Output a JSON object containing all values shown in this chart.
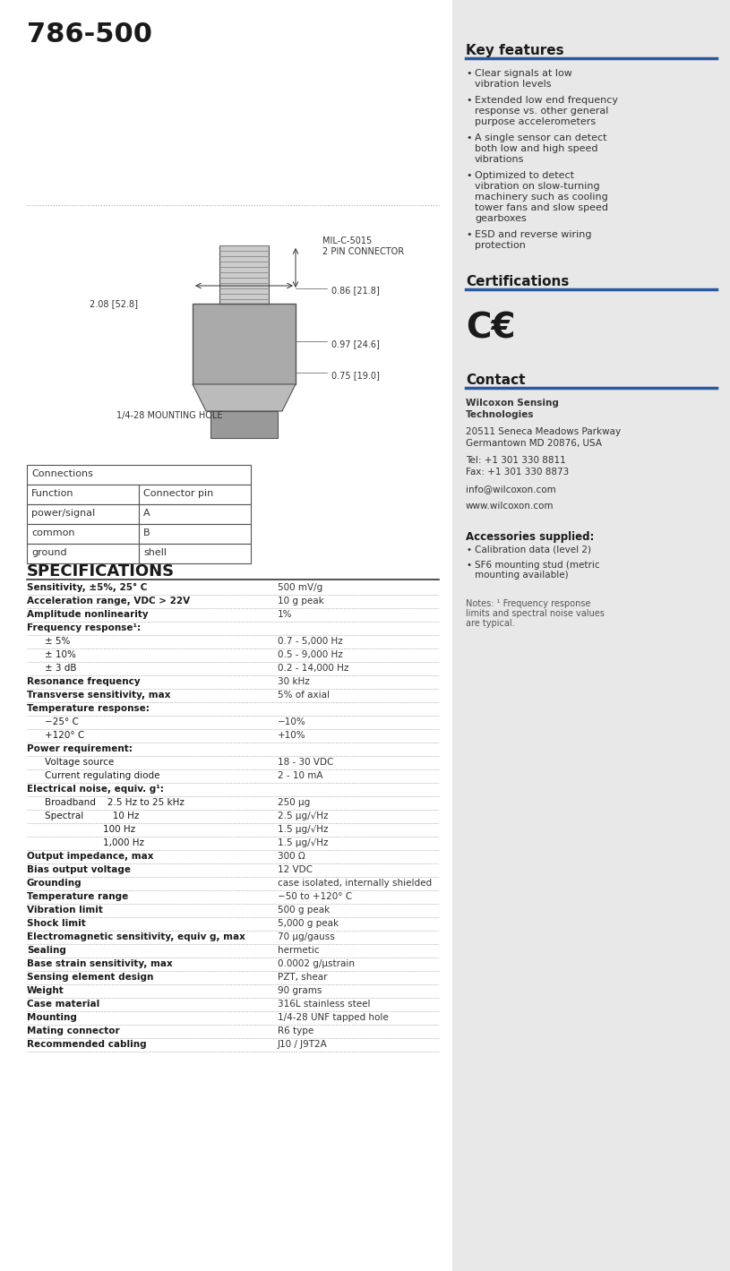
{
  "title": "786-500",
  "bg_color": "#ffffff",
  "sidebar_bg": "#e8e8e8",
  "key_features_title": "Key features",
  "key_features": [
    "Clear signals at low vibration levels",
    "Extended low end frequency response vs. other general purpose accelerometers",
    "A single sensor can detect both low and high speed vibrations",
    "Optimized to detect vibration on slow-turning machinery such as cooling tower fans and slow speed gearboxes",
    "ESD and reverse wiring protection"
  ],
  "certifications_title": "Certifications",
  "certifications_symbol": "CE",
  "contact_title": "Contact",
  "contact_lines": [
    "Wilcoxon Sensing",
    "Technologies",
    "",
    "20511 Seneca Meadows Parkway",
    "Germantown MD 20876, USA",
    "",
    "Tel: +1 301 330 8811",
    "Fax: +1 301 330 8873",
    "",
    "info@wilcoxon.com",
    "",
    "www.wilcoxon.com"
  ],
  "accessories_title": "Accessories supplied:",
  "accessories": [
    "Calibration data (level 2)",
    "SF6 mounting stud (metric mounting available)"
  ],
  "notes": "Notes: ¹ Frequency response limits and spectral noise values are typical.",
  "connections_title": "Connections",
  "connections_headers": [
    "Function",
    "Connector pin"
  ],
  "connections_rows": [
    [
      "power/signal",
      "A"
    ],
    [
      "common",
      "B"
    ],
    [
      "ground",
      "shell"
    ]
  ],
  "specs_title": "SPECIFICATIONS",
  "specs": [
    {
      "param": "Sensitivity, ±5%, 25° C",
      "value": "500 mV/g",
      "bold": true,
      "indent": 0
    },
    {
      "param": "Acceleration range, VDC > 22V",
      "value": "10 g peak",
      "bold": true,
      "indent": 0
    },
    {
      "param": "Amplitude nonlinearity",
      "value": "1%",
      "bold": true,
      "indent": 0
    },
    {
      "param": "Frequency response¹:",
      "value": "",
      "bold": true,
      "indent": 0
    },
    {
      "param": "± 5%",
      "value": "0.7 - 5,000 Hz",
      "bold": false,
      "indent": 1
    },
    {
      "param": "± 10%",
      "value": "0.5 - 9,000 Hz",
      "bold": false,
      "indent": 1
    },
    {
      "param": "± 3 dB",
      "value": "0.2 - 14,000 Hz",
      "bold": false,
      "indent": 1
    },
    {
      "param": "Resonance frequency",
      "value": "30 kHz",
      "bold": true,
      "indent": 0
    },
    {
      "param": "Transverse sensitivity, max",
      "value": "5% of axial",
      "bold": true,
      "indent": 0
    },
    {
      "param": "Temperature response:",
      "value": "",
      "bold": true,
      "indent": 0
    },
    {
      "param": "−25° C",
      "value": "−10%",
      "bold": false,
      "indent": 1
    },
    {
      "param": "+120° C",
      "value": "+10%",
      "bold": false,
      "indent": 1
    },
    {
      "param": "Power requirement:",
      "value": "",
      "bold": true,
      "indent": 0
    },
    {
      "param": "Voltage source",
      "value": "18 - 30 VDC",
      "bold": false,
      "indent": 1
    },
    {
      "param": "Current regulating diode",
      "value": "2 - 10 mA",
      "bold": false,
      "indent": 1
    },
    {
      "param": "Electrical noise, equiv. g¹:",
      "value": "",
      "bold": true,
      "indent": 0
    },
    {
      "param": "Broadband    2.5 Hz to 25 kHz",
      "value": "250 µg",
      "bold": false,
      "indent": 1
    },
    {
      "param": "Spectral          10 Hz",
      "value": "2.5 µg/√Hz",
      "bold": false,
      "indent": 1
    },
    {
      "param": "                    100 Hz",
      "value": "1.5 µg/√Hz",
      "bold": false,
      "indent": 1
    },
    {
      "param": "                    1,000 Hz",
      "value": "1.5 µg/√Hz",
      "bold": false,
      "indent": 1
    },
    {
      "param": "Output impedance, max",
      "value": "300 Ω",
      "bold": true,
      "indent": 0
    },
    {
      "param": "Bias output voltage",
      "value": "12 VDC",
      "bold": true,
      "indent": 0
    },
    {
      "param": "Grounding",
      "value": "case isolated, internally shielded",
      "bold": true,
      "indent": 0
    },
    {
      "param": "Temperature range",
      "value": "−50 to +120° C",
      "bold": true,
      "indent": 0
    },
    {
      "param": "Vibration limit",
      "value": "500 g peak",
      "bold": true,
      "indent": 0
    },
    {
      "param": "Shock limit",
      "value": "5,000 g peak",
      "bold": true,
      "indent": 0
    },
    {
      "param": "Electromagnetic sensitivity, equiv g, max",
      "value": "70 µg/gauss",
      "bold": true,
      "indent": 0
    },
    {
      "param": "Sealing",
      "value": "hermetic",
      "bold": true,
      "indent": 0
    },
    {
      "param": "Base strain sensitivity, max",
      "value": "0.0002 g/µstrain",
      "bold": true,
      "indent": 0
    },
    {
      "param": "Sensing element design",
      "value": "PZT, shear",
      "bold": true,
      "indent": 0
    },
    {
      "param": "Weight",
      "value": "90 grams",
      "bold": true,
      "indent": 0
    },
    {
      "param": "Case material",
      "value": "316L stainless steel",
      "bold": true,
      "indent": 0
    },
    {
      "param": "Mounting",
      "value": "1/4-28 UNF tapped hole",
      "bold": true,
      "indent": 0
    },
    {
      "param": "Mating connector",
      "value": "R6 type",
      "bold": true,
      "indent": 0
    },
    {
      "param": "Recommended cabling",
      "value": "J10 / J9T2A",
      "bold": true,
      "indent": 0
    }
  ],
  "divider_color": "#2b5aa0",
  "text_color": "#333333",
  "spec_param_color": "#1a1a1a",
  "spec_value_color": "#333333"
}
